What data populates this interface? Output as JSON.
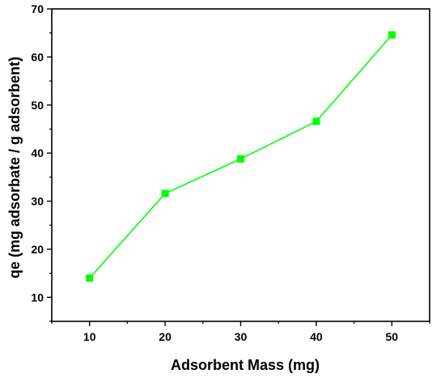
{
  "chart_data": {
    "type": "line",
    "title": "",
    "xlabel": "Adsorbent Mass (mg)",
    "ylabel": "qe (mg adsorbate / g adsorbent)",
    "xlim": [
      5,
      55
    ],
    "ylim": [
      5,
      70
    ],
    "xticks": [
      10,
      20,
      30,
      40,
      50
    ],
    "yticks": [
      10,
      20,
      30,
      40,
      50,
      60,
      70
    ],
    "grid": false,
    "series": [
      {
        "x": [
          10,
          20,
          30,
          40,
          50
        ],
        "values": [
          14.0,
          31.6,
          38.8,
          46.6,
          64.6
        ],
        "color": "#00ff00",
        "marker": "square"
      }
    ]
  }
}
